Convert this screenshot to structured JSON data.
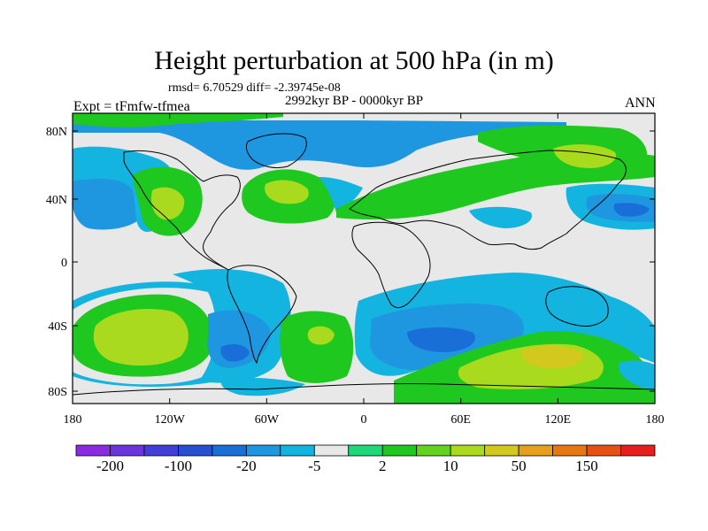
{
  "title": "Height perturbation at 500 hPa (in m)",
  "stats_text": "rmsd= 6.70529 diff= -2.39745e-08",
  "period_text": "2992kyr BP - 0000kyr BP",
  "experiment_text": "Expt = tFmfw-tfmea",
  "season_text": "ANN",
  "lat_ticks": [
    "80N",
    "40N",
    "0",
    "40S",
    "80S"
  ],
  "lon_ticks": [
    "180",
    "120W",
    "60W",
    "0",
    "60E",
    "120E",
    "180"
  ],
  "colorbar": {
    "colors": [
      "#8a2be2",
      "#6a35dc",
      "#4040d8",
      "#2650d0",
      "#1a6ed8",
      "#1e96e0",
      "#14b4e0",
      "#e8e8e8",
      "#1ed87a",
      "#1ec81e",
      "#64d21e",
      "#aada1e",
      "#d2c81e",
      "#e6a01e",
      "#e67814",
      "#e65014",
      "#e61e1e"
    ],
    "labels": [
      "-200",
      "-100",
      "-20",
      "-5",
      "2",
      "10",
      "50",
      "150"
    ]
  }
}
